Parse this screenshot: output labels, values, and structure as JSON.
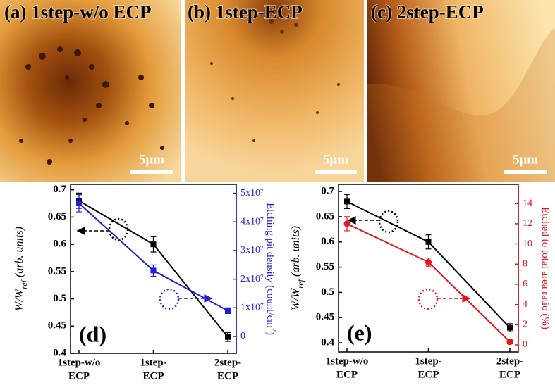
{
  "images": [
    {
      "title": "(a) 1step-w/o ECP",
      "scale_bar": "5μm"
    },
    {
      "title": "(b) 1step-ECP",
      "scale_bar": "5μm"
    },
    {
      "title": "(c) 2step-ECP",
      "scale_bar": "5μm"
    }
  ],
  "chart_data": [
    {
      "type": "line",
      "panel_label": "(d)",
      "categories": [
        [
          "1step-w/o",
          "ECP"
        ],
        [
          "1step-",
          "ECP"
        ],
        [
          "2step-",
          "ECP"
        ]
      ],
      "y_label": {
        "text": "W/W",
        "sub": "ref",
        "rest": "(arb. units)"
      },
      "y2_label": {
        "text": "Etching pit density (count/cm",
        "sup": "2",
        "rest": ")"
      },
      "ylim": [
        0.4,
        0.71
      ],
      "yticks": [
        0.4,
        0.45,
        0.5,
        0.55,
        0.6,
        0.65,
        0.7
      ],
      "y2lim": [
        -5900000,
        53100000
      ],
      "y2ticks": [
        0,
        {
          "value": 10000000,
          "label": "1x10⁷"
        },
        {
          "value": 20000000,
          "label": "2x10⁷"
        },
        {
          "value": 30000000,
          "label": "3x10⁷"
        },
        {
          "value": 40000000,
          "label": "4x10⁷"
        },
        {
          "value": 50000000,
          "label": "5x10⁷"
        }
      ],
      "series": [
        {
          "color": "#000000",
          "marker": "square",
          "values": [
            0.68,
            0.6,
            0.43
          ],
          "errors": [
            0.014,
            0.014,
            0.008
          ]
        },
        {
          "color": "#1f1fd6",
          "marker": "square",
          "axis": "y2",
          "values": [
            46500000,
            23000000,
            9000000
          ],
          "errors": [
            3000000,
            2000000,
            1000000
          ]
        }
      ]
    },
    {
      "type": "line",
      "panel_label": "(e)",
      "categories": [
        [
          "1step-w/o",
          "ECP"
        ],
        [
          "1step-",
          "ECP"
        ],
        [
          "2step-",
          "ECP"
        ]
      ],
      "y_label": {
        "text": "W/W",
        "sub": "ref",
        "rest": "(arb. units)"
      },
      "y2_label": {
        "text": "Etched to total area ratio (%)"
      },
      "ylim": [
        0.382,
        0.714
      ],
      "yticks": [
        0.4,
        0.45,
        0.5,
        0.55,
        0.6,
        0.65,
        0.7
      ],
      "y2lim": [
        -0.7,
        15.9
      ],
      "y2ticks": [
        0,
        2,
        4,
        6,
        8,
        10,
        12,
        14
      ],
      "series": [
        {
          "color": "#000000",
          "marker": "square",
          "values": [
            0.68,
            0.6,
            0.43
          ],
          "errors": [
            0.014,
            0.014,
            0.008
          ]
        },
        {
          "color": "#e8141a",
          "marker": "circle",
          "axis": "y2",
          "values": [
            12,
            8.2,
            0.3
          ],
          "errors": [
            0.7,
            0.4,
            0.2
          ]
        }
      ]
    }
  ]
}
